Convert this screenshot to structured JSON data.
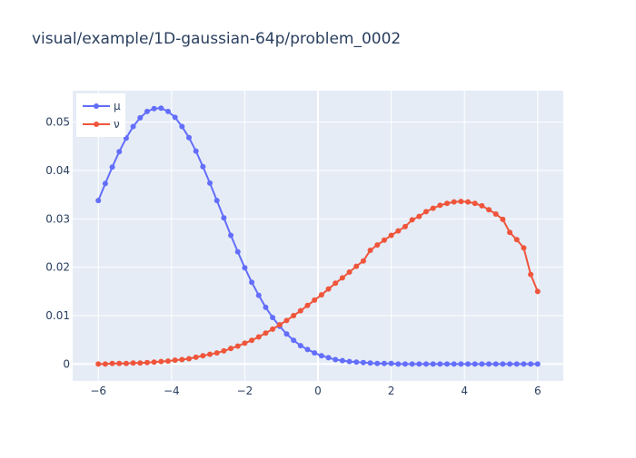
{
  "chart_data": {
    "type": "line",
    "title": "visual/example/1D-gaussian-64p/problem_0002",
    "xlabel": "",
    "ylabel": "",
    "xlim": [
      -6.7,
      6.7
    ],
    "ylim": [
      -0.0035,
      0.0565
    ],
    "xticks": [
      -6,
      -4,
      -2,
      0,
      2,
      4,
      6
    ],
    "xtick_labels": [
      "−6",
      "−4",
      "−2",
      "0",
      "2",
      "4",
      "6"
    ],
    "yticks": [
      0,
      0.01,
      0.02,
      0.03,
      0.04,
      0.05
    ],
    "ytick_labels": [
      "0",
      "0.01",
      "0.02",
      "0.03",
      "0.04",
      "0.05"
    ],
    "grid": true,
    "legend_position": "top-left",
    "x_range": {
      "start": -6,
      "end": 6,
      "count": 64
    },
    "series": [
      {
        "name": "μ",
        "color": "#636efa",
        "marker": "circle",
        "values": [
          0.0338,
          0.0373,
          0.0407,
          0.0439,
          0.0467,
          0.0491,
          0.0509,
          0.0522,
          0.0528,
          0.0529,
          0.0522,
          0.051,
          0.0491,
          0.0468,
          0.044,
          0.0408,
          0.0374,
          0.0338,
          0.0302,
          0.0266,
          0.0232,
          0.0199,
          0.0169,
          0.0142,
          0.0117,
          0.0096,
          0.0078,
          0.0062,
          0.0049,
          0.0038,
          0.003,
          0.0023,
          0.0017,
          0.0013,
          0.0009,
          0.0007,
          0.0005,
          0.0004,
          0.0003,
          0.0002,
          0.0001,
          0.0001,
          0.0001,
          0.0,
          0.0,
          0.0,
          0.0,
          0.0,
          0.0,
          0.0,
          0.0,
          0.0,
          0.0,
          0.0,
          0.0,
          0.0,
          0.0,
          0.0,
          0.0,
          0.0,
          0.0,
          0.0,
          0.0,
          0.0
        ]
      },
      {
        "name": "ν",
        "color": "#ef553b",
        "marker": "circle",
        "values": [
          0.0,
          0.0,
          0.0001,
          0.0001,
          0.0001,
          0.0002,
          0.0002,
          0.0003,
          0.0004,
          0.0005,
          0.0006,
          0.0008,
          0.0009,
          0.0011,
          0.0014,
          0.0017,
          0.002,
          0.0023,
          0.0027,
          0.0032,
          0.0037,
          0.0043,
          0.0049,
          0.0056,
          0.0064,
          0.0072,
          0.0081,
          0.009,
          0.01,
          0.011,
          0.0121,
          0.0132,
          0.0143,
          0.0155,
          0.0167,
          0.0178,
          0.019,
          0.0202,
          0.0213,
          0.0235,
          0.0246,
          0.0256,
          0.0266,
          0.0275,
          0.0284,
          0.0298,
          0.0305,
          0.0315,
          0.0322,
          0.0328,
          0.0332,
          0.0335,
          0.0336,
          0.0335,
          0.0332,
          0.0327,
          0.0319,
          0.031,
          0.0299,
          0.0272,
          0.0257,
          0.024,
          0.0185,
          0.015
        ]
      }
    ]
  }
}
